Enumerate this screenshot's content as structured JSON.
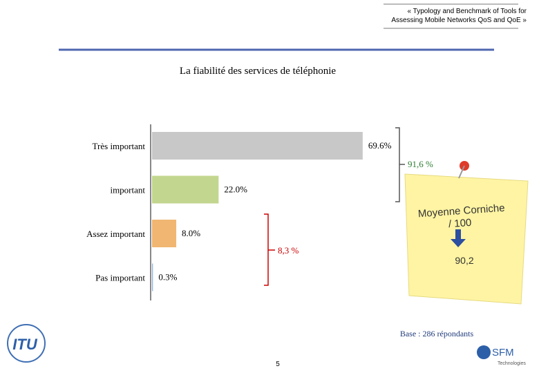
{
  "header": {
    "line1": "« Typology and Benchmark of Tools for",
    "line2": "Assessing Mobile Networks QoS and QoE »"
  },
  "chart_data": {
    "type": "bar",
    "orientation": "horizontal",
    "title": "La fiabilité  des services de téléphonie",
    "categories": [
      "Très important",
      "important",
      "Assez important",
      "Pas important"
    ],
    "values": [
      69.6,
      22.0,
      8.0,
      0.3
    ],
    "value_labels": [
      "69.6%",
      "22.0%",
      "8.0%",
      "0.3%"
    ],
    "colors": [
      "#c8c8c8",
      "#c3d68f",
      "#f1b672",
      "#8db3e2"
    ]
  },
  "annotations": {
    "top_group": "91,6 %",
    "bottom_group": "8,3 %"
  },
  "note": {
    "line1": "Moyenne Corniche",
    "line2": "/ 100",
    "value": "90,2"
  },
  "footer": {
    "base": "Base : 286 répondants",
    "page_number": "5",
    "logo_left": "ITU",
    "logo_right": "SFM",
    "logo_right_sub": "Technologies"
  }
}
